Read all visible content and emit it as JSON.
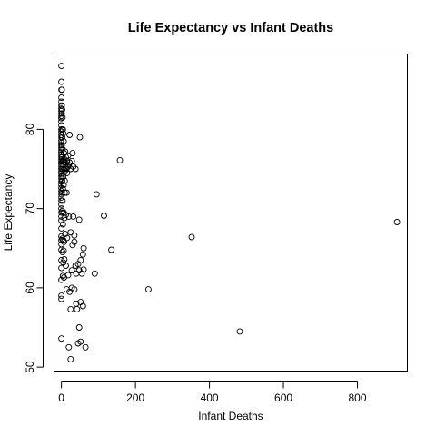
{
  "chart_data": {
    "type": "scatter",
    "title": "Life Expectancy vs  Infant Deaths",
    "xlabel": "Infant Deaths",
    "ylabel": "Life Expectancy",
    "xlim": [
      -20,
      935
    ],
    "ylim": [
      49.5,
      89.5
    ],
    "xticks": [
      0,
      200,
      400,
      600,
      800
    ],
    "yticks": [
      50,
      60,
      70,
      80
    ],
    "xtick_labels": [
      "0",
      "200",
      "400",
      "600",
      "800"
    ],
    "ytick_labels": [
      "50",
      "60",
      "70",
      "80"
    ],
    "grid": false,
    "marker": "open-circle",
    "colors": {
      "points": "#000000",
      "axes": "#000000",
      "background": "#ffffff"
    },
    "points": [
      [
        0,
        88.0
      ],
      [
        0,
        86.0
      ],
      [
        0,
        85.0
      ],
      [
        0,
        84.0
      ],
      [
        0,
        83.5
      ],
      [
        0,
        83.0
      ],
      [
        0,
        82.6
      ],
      [
        0,
        82.3
      ],
      [
        0,
        82.0
      ],
      [
        0,
        81.7
      ],
      [
        0,
        81.4
      ],
      [
        0,
        81.0
      ],
      [
        0,
        80.5
      ],
      [
        0,
        80.0
      ],
      [
        0,
        79.7
      ],
      [
        0,
        79.3
      ],
      [
        0,
        79.0
      ],
      [
        0,
        78.6
      ],
      [
        0,
        78.3
      ],
      [
        0,
        78.0
      ],
      [
        0,
        77.7
      ],
      [
        0,
        77.4
      ],
      [
        0,
        77.1
      ],
      [
        0,
        76.8
      ],
      [
        0,
        76.5
      ],
      [
        0,
        76.2
      ],
      [
        0,
        75.9
      ],
      [
        0,
        75.6
      ],
      [
        0,
        75.3
      ],
      [
        0,
        75.0
      ],
      [
        0,
        74.7
      ],
      [
        0,
        74.4
      ],
      [
        0,
        74.1
      ],
      [
        0,
        73.8
      ],
      [
        0,
        73.4
      ],
      [
        0,
        73.0
      ],
      [
        0,
        72.6
      ],
      [
        0,
        72.2
      ],
      [
        0,
        71.8
      ],
      [
        0,
        71.4
      ],
      [
        0,
        71.0
      ],
      [
        0,
        70.5
      ],
      [
        0,
        70.0
      ],
      [
        0,
        69.5
      ],
      [
        0,
        69.0
      ],
      [
        0,
        68.5
      ],
      [
        0,
        67.5
      ],
      [
        0,
        66.5
      ],
      [
        0,
        66.0
      ],
      [
        0,
        65.5
      ],
      [
        0,
        64.8
      ],
      [
        0,
        63.5
      ],
      [
        0,
        62.5
      ],
      [
        0,
        61.0
      ],
      [
        0,
        59.0
      ],
      [
        0,
        58.6
      ],
      [
        0,
        53.6
      ],
      [
        1,
        85.0
      ],
      [
        1,
        83.0
      ],
      [
        1,
        82.0
      ],
      [
        1,
        80.0
      ],
      [
        1,
        78.0
      ],
      [
        1,
        76.0
      ],
      [
        1,
        74.0
      ],
      [
        1,
        72.0
      ],
      [
        2,
        82.5
      ],
      [
        2,
        79.0
      ],
      [
        2,
        76.5
      ],
      [
        2,
        73.5
      ],
      [
        2,
        69.7
      ],
      [
        2,
        66.2
      ],
      [
        3,
        81.5
      ],
      [
        3,
        77.5
      ],
      [
        3,
        75.0
      ],
      [
        3,
        71.0
      ],
      [
        3,
        64.5
      ],
      [
        4,
        80.0
      ],
      [
        4,
        76.0
      ],
      [
        4,
        72.5
      ],
      [
        4,
        68.0
      ],
      [
        4,
        61.5
      ],
      [
        5,
        79.5
      ],
      [
        5,
        75.5
      ],
      [
        5,
        74.0
      ],
      [
        5,
        66.0
      ],
      [
        5,
        63.2
      ],
      [
        6,
        78.5
      ],
      [
        6,
        76.0
      ],
      [
        6,
        73.0
      ],
      [
        6,
        69.5
      ],
      [
        6,
        64.7
      ],
      [
        7,
        77.0
      ],
      [
        7,
        75.0
      ],
      [
        7,
        65.8
      ],
      [
        7,
        61.3
      ],
      [
        8,
        76.2
      ],
      [
        8,
        74.6
      ],
      [
        8,
        68.8
      ],
      [
        8,
        63.6
      ],
      [
        9,
        75.8
      ],
      [
        9,
        73.5
      ],
      [
        9,
        72.0
      ],
      [
        10,
        77.2
      ],
      [
        10,
        74.8
      ],
      [
        10,
        66.8
      ],
      [
        12,
        76.5
      ],
      [
        12,
        75.2
      ],
      [
        12,
        69.2
      ],
      [
        12,
        62.8
      ],
      [
        14,
        75.0
      ],
      [
        14,
        72.0
      ],
      [
        14,
        59.8
      ],
      [
        15,
        76.0
      ],
      [
        15,
        74.5
      ],
      [
        15,
        66.3
      ],
      [
        18,
        76.7
      ],
      [
        18,
        75.3
      ],
      [
        18,
        61.6
      ],
      [
        20,
        75.5
      ],
      [
        20,
        69.0
      ],
      [
        20,
        52.5
      ],
      [
        22,
        79.3
      ],
      [
        22,
        75.8
      ],
      [
        22,
        59.5
      ],
      [
        25,
        75.0
      ],
      [
        25,
        67.0
      ],
      [
        25,
        57.3
      ],
      [
        25,
        51.0
      ],
      [
        28,
        76.0
      ],
      [
        28,
        62.2
      ],
      [
        28,
        60.0
      ],
      [
        30,
        77.0
      ],
      [
        30,
        65.4
      ],
      [
        32,
        75.3
      ],
      [
        32,
        69.0
      ],
      [
        35,
        65.8
      ],
      [
        35,
        59.8
      ],
      [
        35,
        66.6
      ],
      [
        38,
        75.0
      ],
      [
        38,
        62.8
      ],
      [
        40,
        61.8
      ],
      [
        40,
        58.0
      ],
      [
        42,
        57.3
      ],
      [
        45,
        63.0
      ],
      [
        45,
        53.0
      ],
      [
        48,
        68.6
      ],
      [
        48,
        55.0
      ],
      [
        48,
        62.2
      ],
      [
        50,
        79.0
      ],
      [
        52,
        63.5
      ],
      [
        52,
        58.2
      ],
      [
        52,
        53.2
      ],
      [
        55,
        61.8
      ],
      [
        58,
        64.2
      ],
      [
        58,
        57.7
      ],
      [
        60,
        65.0
      ],
      [
        60,
        62.3
      ],
      [
        65,
        52.5
      ],
      [
        90,
        61.8
      ],
      [
        95,
        71.8
      ],
      [
        115,
        69.1
      ],
      [
        135,
        64.8
      ],
      [
        158,
        76.1
      ],
      [
        235,
        59.8
      ],
      [
        352,
        66.4
      ],
      [
        482,
        54.5
      ],
      [
        907,
        68.3
      ]
    ]
  }
}
